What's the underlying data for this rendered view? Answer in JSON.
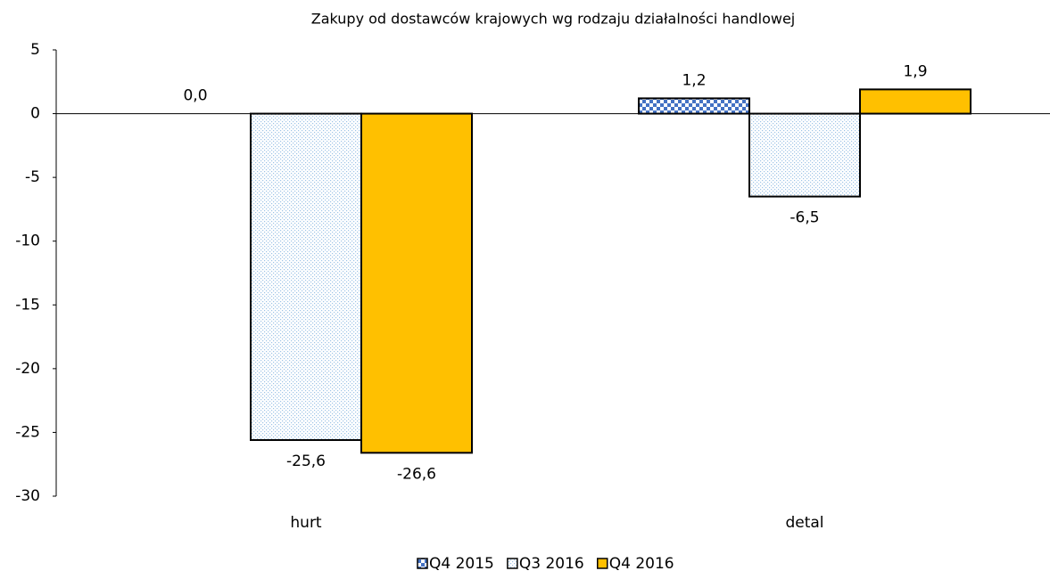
{
  "chart_data": {
    "type": "bar",
    "title": "Zakupy od dostawców krajowych wg rodzaju działalności handlowej",
    "categories": [
      "hurt",
      "detal"
    ],
    "series": [
      {
        "name": "Q4 2015",
        "color": "#4472c4",
        "pattern": "checker",
        "values": [
          0.0,
          1.2
        ],
        "value_labels": [
          "0,0",
          "1,2"
        ]
      },
      {
        "name": "Q3 2016",
        "color": "#9dc3e6",
        "pattern": "dots",
        "values": [
          -25.6,
          -6.5
        ],
        "value_labels": [
          "-25,6",
          "-6,5"
        ]
      },
      {
        "name": "Q4 2016",
        "color": "#ffc000",
        "pattern": "solid",
        "values": [
          -26.6,
          1.9
        ],
        "value_labels": [
          "-26,6",
          "1,9"
        ]
      }
    ],
    "ylim": [
      -30,
      5
    ],
    "yticks": [
      5,
      0,
      -5,
      -10,
      -15,
      -20,
      -25,
      -30
    ],
    "legend": "bottom"
  }
}
